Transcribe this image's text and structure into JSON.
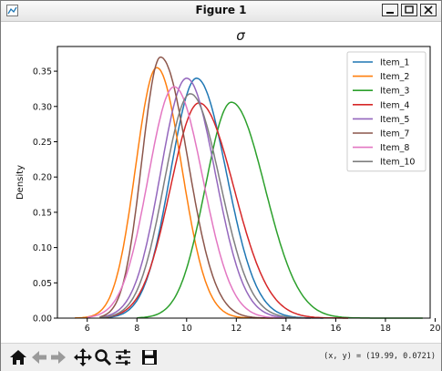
{
  "window": {
    "title": "Figure 1"
  },
  "icons": {
    "app": "matplotlib-figure-icon",
    "minimize": "minimize-icon",
    "maximize": "maximize-icon",
    "close": "close-icon",
    "home": "home-icon",
    "back": "back-arrow-icon",
    "forward": "forward-arrow-icon",
    "pan": "pan-move-icon",
    "zoom": "zoom-magnifier-icon",
    "configure": "configure-subplots-icon",
    "save": "save-floppy-icon"
  },
  "toolbar": {
    "coords": "(x, y) = (19.99, 0.0721)"
  },
  "chart_data": {
    "type": "line",
    "title": "σ",
    "xlabel": "",
    "ylabel": "Density",
    "xlim": [
      4.8,
      19.8
    ],
    "ylim": [
      0,
      0.385
    ],
    "xticks": [
      6,
      8,
      10,
      12,
      14,
      16,
      18,
      20
    ],
    "yticks": [
      0.0,
      0.05,
      0.1,
      0.15,
      0.2,
      0.25,
      0.3,
      0.35
    ],
    "ytick_labels": [
      "0.00",
      "0.05",
      "0.10",
      "0.15",
      "0.20",
      "0.25",
      "0.30",
      "0.35"
    ],
    "grid": false,
    "legend_position": "top-right",
    "series": [
      {
        "name": "Item_1",
        "color": "#1f77b4",
        "mode": 10.4,
        "peak": 0.34,
        "sl": 1.05,
        "sr": 1.2,
        "x0": 6.5,
        "x1": 15.5
      },
      {
        "name": "Item_2",
        "color": "#ff7f0e",
        "mode": 8.8,
        "peak": 0.355,
        "sl": 0.85,
        "sr": 1.0,
        "x0": 5.5,
        "x1": 13.5
      },
      {
        "name": "Item_3",
        "color": "#2ca02c",
        "mode": 11.8,
        "peak": 0.306,
        "sl": 1.05,
        "sr": 1.35,
        "x0": 8.0,
        "x1": 19.5
      },
      {
        "name": "Item_4",
        "color": "#d62728",
        "mode": 10.5,
        "peak": 0.305,
        "sl": 1.15,
        "sr": 1.4,
        "x0": 6.5,
        "x1": 16.5
      },
      {
        "name": "Item_5",
        "color": "#9467bd",
        "mode": 10.0,
        "peak": 0.34,
        "sl": 1.05,
        "sr": 1.15,
        "x0": 6.5,
        "x1": 15.0
      },
      {
        "name": "Item_7",
        "color": "#8c564b",
        "mode": 8.95,
        "peak": 0.37,
        "sl": 0.75,
        "sr": 1.1,
        "x0": 6.5,
        "x1": 14.0
      },
      {
        "name": "Item_8",
        "color": "#e377c2",
        "mode": 9.5,
        "peak": 0.328,
        "sl": 1.05,
        "sr": 1.15,
        "x0": 6.0,
        "x1": 14.0
      },
      {
        "name": "Item_10",
        "color": "#7f7f7f",
        "mode": 10.15,
        "peak": 0.318,
        "sl": 1.05,
        "sr": 1.2,
        "x0": 6.5,
        "x1": 15.0
      }
    ]
  }
}
